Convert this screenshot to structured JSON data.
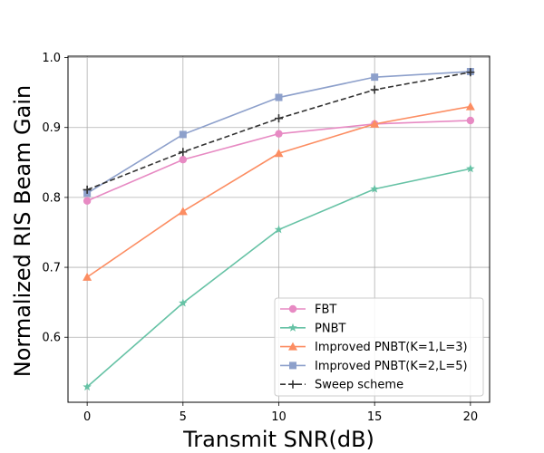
{
  "chart_data": {
    "type": "line",
    "title": "",
    "xlabel": "Transmit SNR(dB)",
    "ylabel": "Normalized RIS Beam Gain",
    "x": [
      0,
      5,
      10,
      15,
      20
    ],
    "xticks": [
      0,
      5,
      10,
      15,
      20
    ],
    "yticks": [
      0.6,
      0.7,
      0.8,
      0.9,
      1.0
    ],
    "ytick_labels": [
      "0.6",
      "0.7",
      "0.8",
      "0.9",
      "1.0"
    ],
    "xlim": [
      -1,
      21
    ],
    "ylim": [
      0.507,
      1.002
    ],
    "grid": true,
    "legend_position": "lower-right",
    "series": [
      {
        "name": "FBT",
        "color": "#e78ac3",
        "marker": "circle",
        "dash": "solid",
        "values": [
          0.795,
          0.854,
          0.891,
          0.905,
          0.91
        ]
      },
      {
        "name": "PNBT",
        "color": "#66c2a5",
        "marker": "star",
        "dash": "solid",
        "values": [
          0.529,
          0.649,
          0.754,
          0.812,
          0.841
        ]
      },
      {
        "name": "Improved PNBT(K=1,L=3)",
        "color": "#fc8d62",
        "marker": "triangle",
        "dash": "solid",
        "values": [
          0.686,
          0.78,
          0.863,
          0.905,
          0.93
        ]
      },
      {
        "name": "Improved PNBT(K=2,L=5)",
        "color": "#8da0cb",
        "marker": "square",
        "dash": "solid",
        "values": [
          0.806,
          0.89,
          0.943,
          0.972,
          0.98
        ]
      },
      {
        "name": "Sweep scheme",
        "color": "#333333",
        "marker": "plus",
        "dash": "dashed",
        "values": [
          0.811,
          0.865,
          0.913,
          0.954,
          0.979
        ]
      }
    ]
  }
}
